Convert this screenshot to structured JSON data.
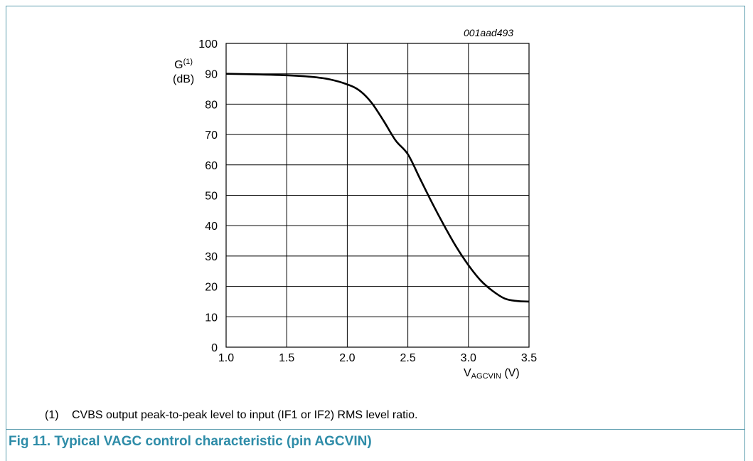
{
  "figure_id": "001aad493",
  "footnote": {
    "marker": "(1)",
    "text": "CVBS output peak-to-peak level to input (IF1 or IF2) RMS level ratio."
  },
  "caption": "Fig 11.  Typical VAGC control characteristic (pin AGCVIN)",
  "chart_data": {
    "type": "line",
    "title": "",
    "xlabel": {
      "main": "V",
      "sub": "AGCVIN",
      "unit": "(V)"
    },
    "ylabel": {
      "main": "G",
      "sup": "(1)",
      "unit": "(dB)"
    },
    "xlim": [
      1.0,
      3.5
    ],
    "ylim": [
      0,
      100
    ],
    "xticks": [
      1.0,
      1.5,
      2.0,
      2.5,
      3.0,
      3.5
    ],
    "xtick_labels": [
      "1.0",
      "1.5",
      "2.0",
      "2.5",
      "3.0",
      "3.5"
    ],
    "yticks": [
      0,
      10,
      20,
      30,
      40,
      50,
      60,
      70,
      80,
      90,
      100
    ],
    "ytick_labels": [
      "0",
      "10",
      "20",
      "30",
      "40",
      "50",
      "60",
      "70",
      "80",
      "90",
      "100"
    ],
    "grid": true,
    "series": [
      {
        "x": [
          1.0,
          1.25,
          1.5,
          1.7,
          1.85,
          2.0,
          2.1,
          2.2,
          2.3,
          2.4,
          2.5,
          2.6,
          2.7,
          2.8,
          2.9,
          3.0,
          3.1,
          3.2,
          3.3,
          3.4,
          3.5
        ],
        "y": [
          90,
          89.8,
          89.5,
          89.0,
          88.2,
          86.5,
          84.5,
          80.5,
          74.5,
          68.0,
          63.5,
          55.5,
          47.5,
          40.0,
          33.0,
          27.0,
          22.0,
          18.5,
          16.0,
          15.2,
          15.0
        ]
      }
    ]
  }
}
